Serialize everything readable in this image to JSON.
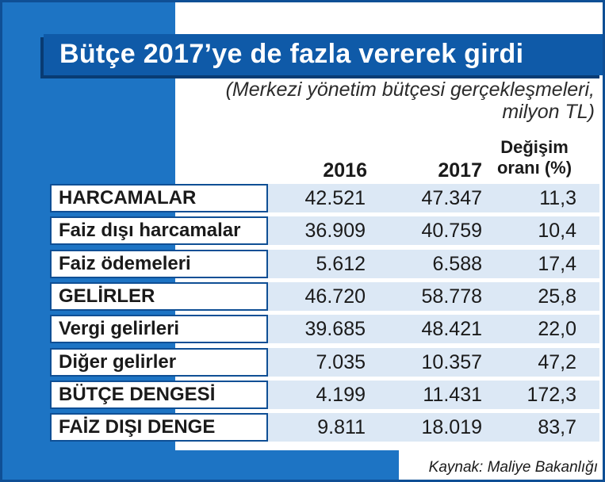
{
  "title": "Bütçe 2017’ye de fazla vererek girdi",
  "subtitle_line1": "(Merkezi yönetim bütçesi gerçekleşmeleri,",
  "subtitle_line2": "milyon TL)",
  "columns": {
    "c2016": "2016",
    "c2017": "2017",
    "change_line1": "Değişim",
    "change_line2": "oranı (%)"
  },
  "source": "Kaynak: Maliye Bakanlığı",
  "colors": {
    "accent": "#1d74c4",
    "banner": "#0f5aa8",
    "row_fill": "#dce8f5",
    "border": "#0f4f95"
  },
  "chart_data": {
    "type": "table",
    "title": "Bütçe 2017’ye de fazla vererek girdi",
    "subtitle": "(Merkezi yönetim bütçesi gerçekleşmeleri, milyon TL)",
    "headers": [
      "",
      "2016",
      "2017",
      "Değişim oranı (%)"
    ],
    "rows": [
      [
        "HARCAMALAR",
        "42.521",
        "47.347",
        "11,3"
      ],
      [
        "Faiz dışı harcamalar",
        "36.909",
        "40.759",
        "10,4"
      ],
      [
        "Faiz ödemeleri",
        "5.612",
        "6.588",
        "17,4"
      ],
      [
        "GELİRLER",
        "46.720",
        "58.778",
        "25,8"
      ],
      [
        "Vergi gelirleri",
        "39.685",
        "48.421",
        "22,0"
      ],
      [
        "Diğer gelirler",
        "7.035",
        "10.357",
        "47,2"
      ],
      [
        "BÜTÇE DENGESİ",
        "4.199",
        "11.431",
        "172,3"
      ],
      [
        "FAİZ DIŞI DENGE",
        "9.811",
        "18.019",
        "83,7"
      ]
    ]
  }
}
